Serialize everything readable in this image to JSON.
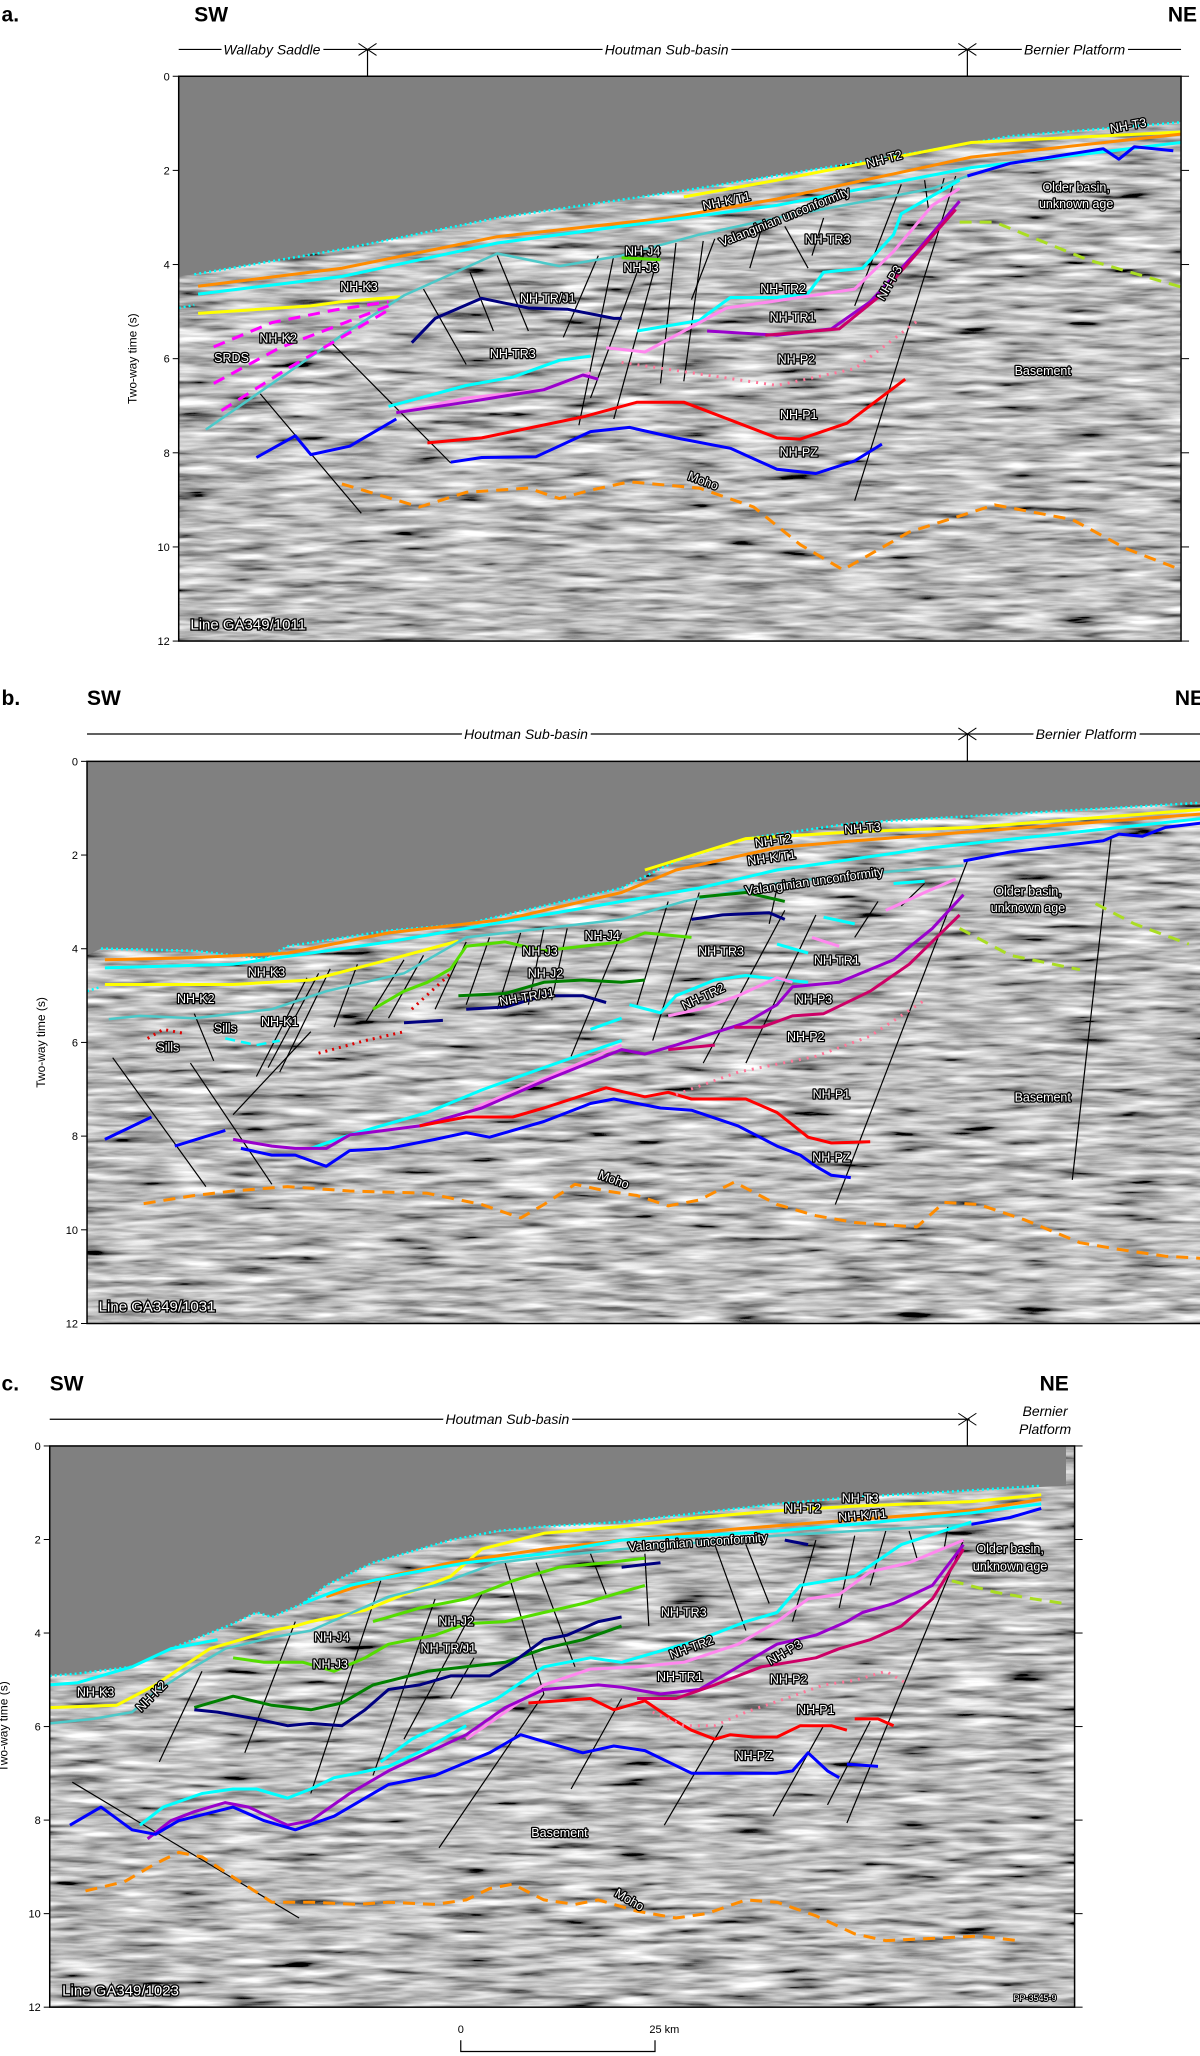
{
  "figure_id": "PP-3545-9",
  "y_axis": {
    "label": "Two-way time (s)",
    "ticks": [
      "0",
      "2",
      "4",
      "6",
      "8",
      "10",
      "12"
    ]
  },
  "scale_bar": {
    "start": "0",
    "end": "25 km"
  },
  "panels": [
    {
      "letter": "a.",
      "left": "SW",
      "right": "NE",
      "regions": [
        "Wallaby Saddle",
        "Houtman Sub-basin",
        "Bernier Platform"
      ],
      "line_id": "Line GA349/1011",
      "labels": [
        "NH-T3",
        "NH-T2",
        "NH-K/T1",
        "Valanginian unconformity",
        "NH-TR3",
        "NH-J4",
        "NH-J3",
        "NH-K3",
        "NH-TR/J1",
        "NH-TR2",
        "NH-TR1",
        "NH-P3",
        "NH-K2",
        "SRDS",
        "NH-TR3",
        "NH-P2",
        "Basement",
        "NH-P1",
        "NH-PZ",
        "Moho",
        "Older basin,",
        "unknown age"
      ]
    },
    {
      "letter": "b.",
      "left": "SW",
      "right": "NE",
      "regions": [
        "Houtman Sub-basin",
        "Bernier Platform"
      ],
      "line_id": "Line GA349/1031",
      "labels": [
        "NH-T3",
        "NH-T2",
        "NH-K/T1",
        "Valanginian unconformity",
        "NH-J4",
        "NH-J3",
        "NH-TR3",
        "NH-K3",
        "NH-J2",
        "NH-TR1",
        "NH-K2",
        "NH-TR/J1",
        "NH-TR2",
        "NH-P3",
        "Sills",
        "NH-K1",
        "Sills",
        "NH-P2",
        "NH-P1",
        "Basement",
        "NH-PZ",
        "Moho",
        "Older basin,",
        "unknown age"
      ]
    },
    {
      "letter": "c.",
      "left": "SW",
      "right": "NE",
      "regions": [
        "Houtman Sub-basin",
        "Bernier",
        "Platform"
      ],
      "line_id": "Line GA349/1023",
      "labels": [
        "NH-T3",
        "NH-T2",
        "NH-K/T1",
        "Valanginian unconformity",
        "NH-TR3",
        "NH-J2",
        "NH-J4",
        "NH-TR2",
        "NH-TR/J1",
        "NH-P3",
        "NH-J3",
        "NH-TR1",
        "NH-P2",
        "NH-K3",
        "NH-K2",
        "NH-P1",
        "NH-PZ",
        "Basement",
        "Moho",
        "Older basin,",
        "unknown age"
      ]
    }
  ],
  "colors": {
    "water": "#808080",
    "yellow": "#ffff00",
    "orange": "#ff8c00",
    "cyan": "#00ffff",
    "teal": "#4cc9c9",
    "blue": "#0000ff",
    "navy": "#000080",
    "green": "#55dd00",
    "dark_green": "#008000",
    "pink": "#ff88ee",
    "purple": "#9900cc",
    "crimson": "#cc0066",
    "red": "#ff0000",
    "moho": "#ff8c00",
    "lime": "#aadd22",
    "magenta": "#ff00ff"
  }
}
